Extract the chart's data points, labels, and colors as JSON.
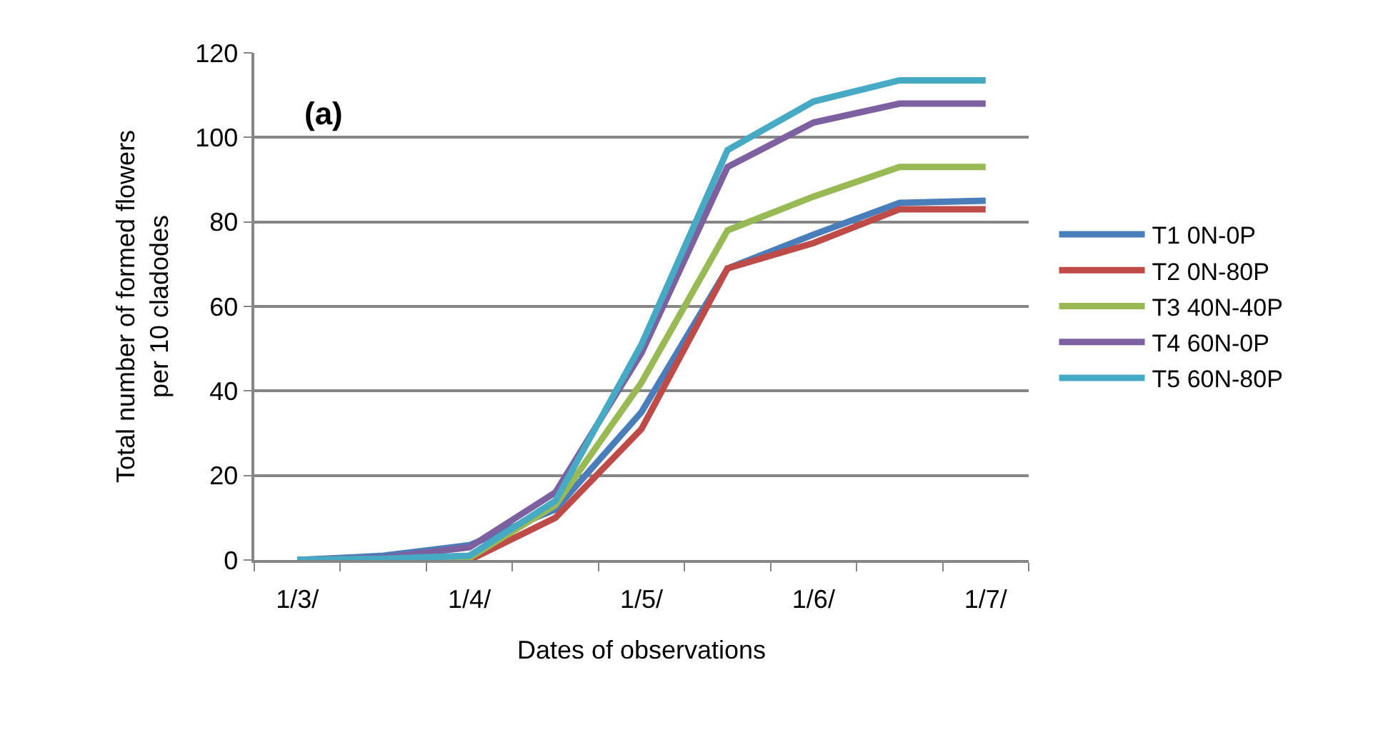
{
  "chart_data": {
    "type": "line",
    "title": "(a)",
    "xlabel": "Dates of observations",
    "ylabel": "Total number of formed flowers\nper 10 cladodes",
    "categories": [
      "1/3/",
      null,
      "1/4/",
      null,
      "1/5/",
      null,
      "1/6/",
      null,
      "1/7/"
    ],
    "ylim": [
      0,
      120
    ],
    "yticks": [
      0,
      20,
      40,
      60,
      80,
      100,
      120
    ],
    "grid": "y",
    "legend": "right",
    "marker": "none",
    "line_style": "solid",
    "series": [
      {
        "name": "T1 0N-0P",
        "color": "#4a7ebb",
        "values": [
          0,
          1,
          3.5,
          12,
          35,
          69,
          77,
          84.5,
          85
        ]
      },
      {
        "name": "T2 0N-80P",
        "color": "#be4b48",
        "values": [
          0,
          0.3,
          0,
          10,
          31,
          69,
          75,
          83,
          83
        ]
      },
      {
        "name": "T3 40N-40P",
        "color": "#98b954",
        "values": [
          0,
          0.3,
          0.5,
          13,
          42,
          78,
          86,
          93,
          93
        ]
      },
      {
        "name": "T4 60N-0P",
        "color": "#7d60a0",
        "values": [
          0,
          0.5,
          3,
          16,
          49,
          93,
          103.5,
          108,
          108
        ]
      },
      {
        "name": "T5 60N-80P",
        "color": "#46aac5",
        "values": [
          0,
          0.3,
          1,
          14,
          51,
          97,
          108.5,
          113.5,
          113.5
        ]
      }
    ]
  }
}
